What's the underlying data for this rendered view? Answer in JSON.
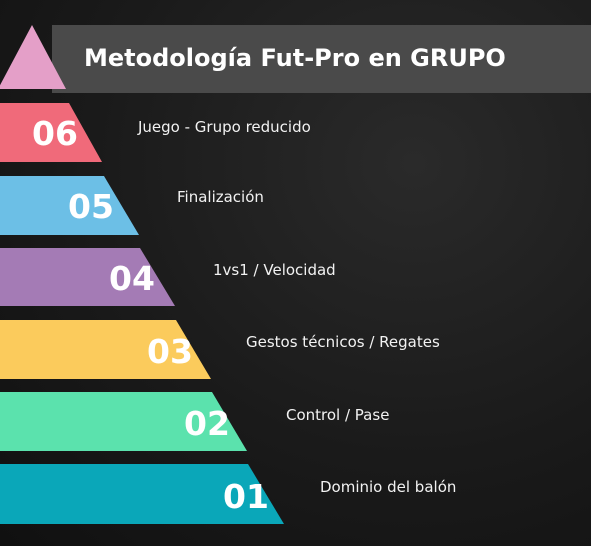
{
  "title": "Metodología Fut-Pro en GRUPO",
  "colors": {
    "background": "#1a1a1a",
    "title_bar": "#4a4a4a",
    "tip": "#e49fc8"
  },
  "levels": [
    {
      "number": "06",
      "label": "Juego - Grupo reducido",
      "color": "#f06a7a"
    },
    {
      "number": "05",
      "label": "Finalización",
      "color": "#6cbfe6"
    },
    {
      "number": "04",
      "label": "1vs1 / Velocidad",
      "color": "#a47bb5"
    },
    {
      "number": "03",
      "label": "Gestos técnicos / Regates",
      "color": "#fbcb5c"
    },
    {
      "number": "02",
      "label": "Control / Pase",
      "color": "#5be2ad"
    },
    {
      "number": "01",
      "label": "Dominio del balón",
      "color": "#0aa7b9"
    }
  ]
}
